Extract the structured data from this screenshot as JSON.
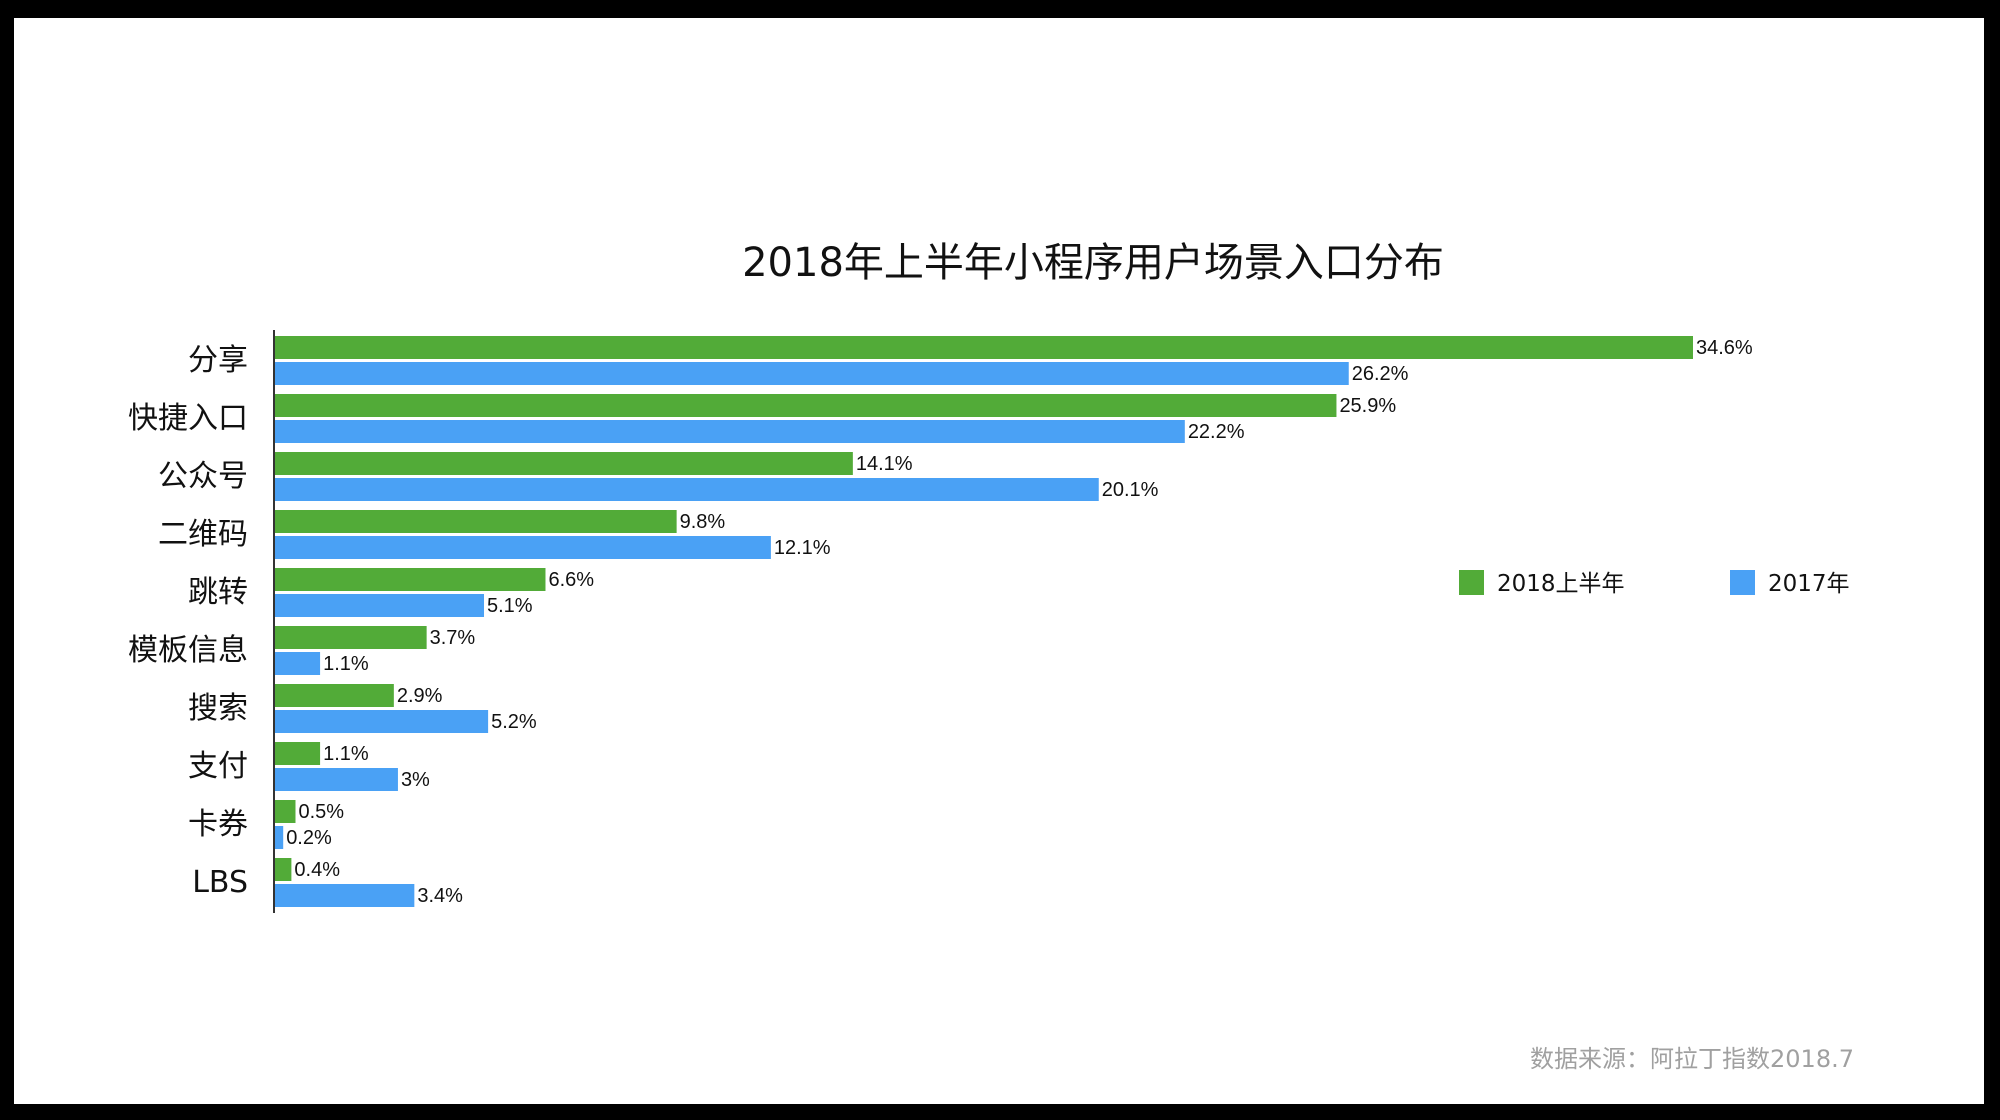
{
  "chart_data": {
    "type": "bar",
    "orientation": "horizontal",
    "title": "2018年上半年小程序用户场景入口分布",
    "categories": [
      "分享",
      "快捷入口",
      "公众号",
      "二维码",
      "跳转",
      "模板信息",
      "搜索",
      "支付",
      "卡券",
      "LBS"
    ],
    "series": [
      {
        "name": "2018上半年",
        "color": "#52ab38",
        "values": [
          34.6,
          25.9,
          14.1,
          9.8,
          6.6,
          3.7,
          2.9,
          1.1,
          0.5,
          0.4
        ],
        "labels": [
          "34.6%",
          "25.9%",
          "14.1%",
          "9.8%",
          "6.6%",
          "3.7%",
          "2.9%",
          "1.1%",
          "0.5%",
          "0.4%"
        ]
      },
      {
        "name": "2017年",
        "color": "#4aa1f5",
        "values": [
          26.2,
          22.2,
          20.1,
          12.1,
          5.1,
          1.1,
          5.2,
          3,
          0.2,
          3.4
        ],
        "labels": [
          "26.2%",
          "22.2%",
          "20.1%",
          "12.1%",
          "5.1%",
          "1.1%",
          "5.2%",
          "3%",
          "0.2%",
          "3.4%"
        ]
      }
    ],
    "xlim": [
      0,
      35
    ],
    "grid": false,
    "legend_position": "right"
  },
  "source_note": "数据来源：阿拉丁指数2018.7"
}
